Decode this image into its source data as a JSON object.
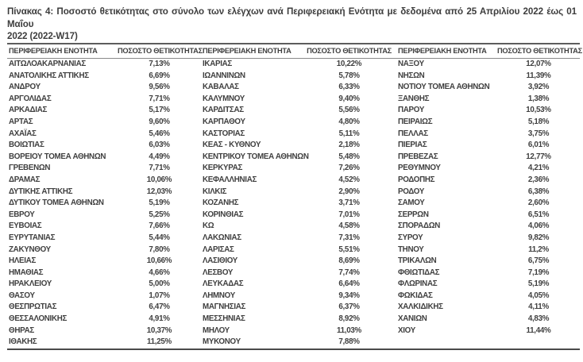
{
  "title": {
    "line1": "Πίνακας 4: Ποσοστό θετικότητας στο σύνολο των ελέγχων ανά Περιφερειακή Ενότητα με δεδομένα από 25 Απριλίου 2022 έως 01 Μαΐου",
    "line2": "2022 (2022-W17)"
  },
  "table": {
    "col_headers": [
      "ΠΕΡΙΦΕΡΕΙΑΚΗ ΕΝΟΤΗΤΑ",
      "ΠΟΣΟΣΤΟ ΘΕΤΙΚΟΤΗΤΑΣ"
    ],
    "groups": [
      {
        "rows": [
          [
            "ΑΙΤΩΛΟΑΚΑΡΝΑΝΙΑΣ",
            "7,13%"
          ],
          [
            "ΑΝΑΤΟΛΙΚΗΣ ΑΤΤΙΚΗΣ",
            "6,69%"
          ],
          [
            "ΑΝΔΡΟΥ",
            "9,56%"
          ],
          [
            "ΑΡΓΟΛΙΔΑΣ",
            "7,71%"
          ],
          [
            "ΑΡΚΑΔΙΑΣ",
            "5,17%"
          ],
          [
            "ΑΡΤΑΣ",
            "9,60%"
          ],
          [
            "ΑΧΑΪΑΣ",
            "5,46%"
          ],
          [
            "ΒΟΙΩΤΙΑΣ",
            "6,03%"
          ],
          [
            "ΒΟΡΕΙΟΥ ΤΟΜΕΑ ΑΘΗΝΩΝ",
            "4,49%"
          ],
          [
            "ΓΡΕΒΕΝΩΝ",
            "7,71%"
          ],
          [
            "ΔΡΑΜΑΣ",
            "10,06%"
          ],
          [
            "ΔΥΤΙΚΗΣ ΑΤΤΙΚΗΣ",
            "12,03%"
          ],
          [
            "ΔΥΤΙΚΟΥ ΤΟΜΕΑ ΑΘΗΝΩΝ",
            "5,19%"
          ],
          [
            "ΕΒΡΟΥ",
            "5,25%"
          ],
          [
            "ΕΥΒΟΙΑΣ",
            "7,66%"
          ],
          [
            "ΕΥΡΥΤΑΝΙΑΣ",
            "5,44%"
          ],
          [
            "ΖΑΚΥΝΘΟΥ",
            "7,80%"
          ],
          [
            "ΗΛΕΙΑΣ",
            "10,66%"
          ],
          [
            "ΗΜΑΘΙΑΣ",
            "4,66%"
          ],
          [
            "ΗΡΑΚΛΕΙΟΥ",
            "5,00%"
          ],
          [
            "ΘΑΣΟΥ",
            "1,07%"
          ],
          [
            "ΘΕΣΠΡΩΤΙΑΣ",
            "6,47%"
          ],
          [
            "ΘΕΣΣΑΛΟΝΙΚΗΣ",
            "4,91%"
          ],
          [
            "ΘΗΡΑΣ",
            "10,37%"
          ],
          [
            "ΙΘΑΚΗΣ",
            "11,25%"
          ]
        ]
      },
      {
        "rows": [
          [
            "ΙΚΑΡΙΑΣ",
            "10,22%"
          ],
          [
            "ΙΩΑΝΝΙΝΩΝ",
            "5,78%"
          ],
          [
            "ΚΑΒΑΛΑΣ",
            "6,33%"
          ],
          [
            "ΚΑΛΥΜΝΟΥ",
            "9,40%"
          ],
          [
            "ΚΑΡΔΙΤΣΑΣ",
            "5,56%"
          ],
          [
            "ΚΑΡΠΑΘΟΥ",
            "4,80%"
          ],
          [
            "ΚΑΣΤΟΡΙΑΣ",
            "5,11%"
          ],
          [
            "ΚΕΑΣ - ΚΥΘΝΟΥ",
            "2,18%"
          ],
          [
            "ΚΕΝΤΡΙΚΟΥ ΤΟΜΕΑ ΑΘΗΝΩΝ",
            "5,48%"
          ],
          [
            "ΚΕΡΚΥΡΑΣ",
            "7,26%"
          ],
          [
            "ΚΕΦΑΛΛΗΝΙΑΣ",
            "4,52%"
          ],
          [
            "ΚΙΛΚΙΣ",
            "2,90%"
          ],
          [
            "ΚΟΖΑΝΗΣ",
            "3,71%"
          ],
          [
            "ΚΟΡΙΝΘΙΑΣ",
            "7,01%"
          ],
          [
            "ΚΩ",
            "4,58%"
          ],
          [
            "ΛΑΚΩΝΙΑΣ",
            "7,31%"
          ],
          [
            "ΛΑΡΙΣΑΣ",
            "5,51%"
          ],
          [
            "ΛΑΣΙΘΙΟΥ",
            "8,69%"
          ],
          [
            "ΛΕΣΒΟΥ",
            "7,74%"
          ],
          [
            "ΛΕΥΚΑΔΑΣ",
            "6,64%"
          ],
          [
            "ΛΗΜΝΟΥ",
            "9,34%"
          ],
          [
            "ΜΑΓΝΗΣΙΑΣ",
            "6,37%"
          ],
          [
            "ΜΕΣΣΗΝΙΑΣ",
            "8,92%"
          ],
          [
            "ΜΗΛΟΥ",
            "11,03%"
          ],
          [
            "ΜΥΚΟΝΟΥ",
            "7,88%"
          ]
        ]
      },
      {
        "rows": [
          [
            "ΝΑΞΟΥ",
            "12,07%"
          ],
          [
            "ΝΗΣΩΝ",
            "11,39%"
          ],
          [
            "ΝΟΤΙΟΥ ΤΟΜΕΑ ΑΘΗΝΩΝ",
            "3,92%"
          ],
          [
            "ΞΑΝΘΗΣ",
            "1,38%"
          ],
          [
            "ΠΑΡΟΥ",
            "10,53%"
          ],
          [
            "ΠΕΙΡΑΙΩΣ",
            "5,18%"
          ],
          [
            "ΠΕΛΛΑΣ",
            "3,75%"
          ],
          [
            "ΠΙΕΡΙΑΣ",
            "6,01%"
          ],
          [
            "ΠΡΕΒΕΖΑΣ",
            "12,77%"
          ],
          [
            "ΡΕΘΥΜΝΟΥ",
            "4,21%"
          ],
          [
            "ΡΟΔΟΠΗΣ",
            "2,36%"
          ],
          [
            "ΡΟΔΟΥ",
            "6,38%"
          ],
          [
            "ΣΑΜΟΥ",
            "2,60%"
          ],
          [
            "ΣΕΡΡΩΝ",
            "6,51%"
          ],
          [
            "ΣΠΟΡΑΔΩΝ",
            "4,06%"
          ],
          [
            "ΣΥΡΟΥ",
            "9,82%"
          ],
          [
            "ΤΗΝΟΥ",
            "11,2%"
          ],
          [
            "ΤΡΙΚΑΛΩΝ",
            "6,75%"
          ],
          [
            "ΦΘΙΩΤΙΔΑΣ",
            "7,19%"
          ],
          [
            "ΦΛΩΡΙΝΑΣ",
            "5,19%"
          ],
          [
            "ΦΩΚΙΔΑΣ",
            "4,05%"
          ],
          [
            "ΧΑΛΚΙΔΙΚΗΣ",
            "4,11%"
          ],
          [
            "ΧΑΝΙΩΝ",
            "4,83%"
          ],
          [
            "ΧΙΟΥ",
            "11,44%"
          ]
        ]
      }
    ]
  }
}
